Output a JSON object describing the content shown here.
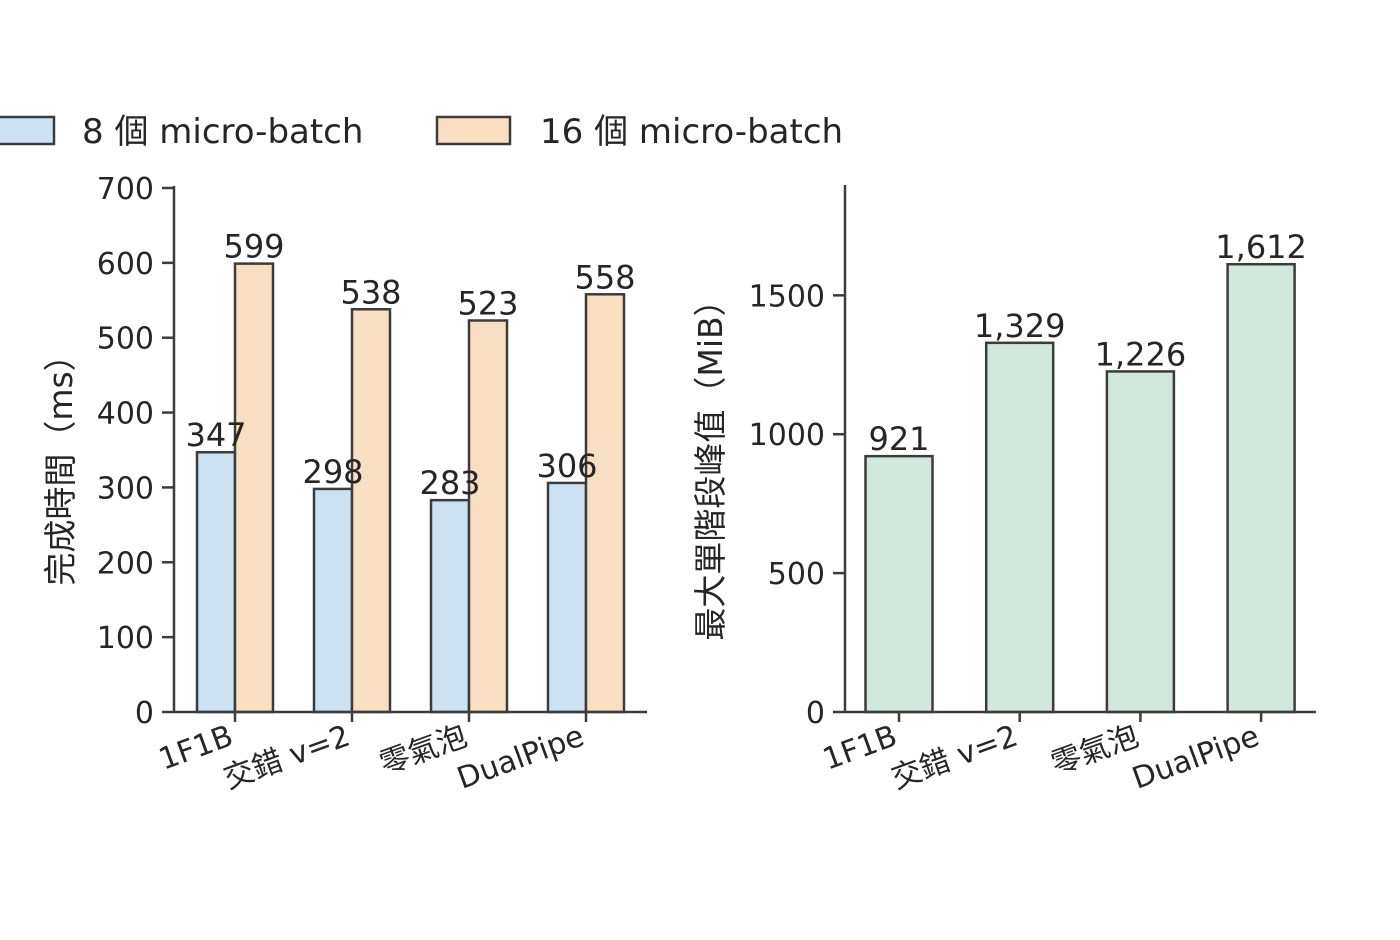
{
  "colors": {
    "series_8": "#cce2f3",
    "series_16": "#f9dfc1",
    "memory": "#d2e8dc",
    "edge": "#3c3c3c",
    "text": "#262626"
  },
  "chart_data": [
    {
      "type": "bar",
      "categories": [
        "1F1B",
        "交錯 v=2",
        "零氣泡",
        "DualPipe"
      ],
      "series": [
        {
          "name": "8 個 micro-batch",
          "values": [
            347,
            298,
            283,
            306
          ]
        },
        {
          "name": "16 個 micro-batch",
          "values": [
            599,
            538,
            523,
            558
          ]
        }
      ],
      "data_labels": [
        [
          "347",
          "298",
          "283",
          "306"
        ],
        [
          "599",
          "538",
          "523",
          "558"
        ]
      ],
      "title": "",
      "xlabel": "",
      "ylabel": "完成時間（ms）",
      "ylim": [
        0,
        700
      ],
      "yticks": [
        0,
        100,
        200,
        300,
        400,
        500,
        600,
        700
      ],
      "legend": "top",
      "grid": false
    },
    {
      "type": "bar",
      "categories": [
        "1F1B",
        "交錯 v=2",
        "零氣泡",
        "DualPipe"
      ],
      "values": [
        921,
        1329,
        1226,
        1612
      ],
      "data_labels": [
        "921",
        "1,329",
        "1,226",
        "1,612"
      ],
      "title": "",
      "xlabel": "",
      "ylabel": "最大單階段峰值（MiB）",
      "ylim": [
        0,
        1890
      ],
      "yticks": [
        0,
        500,
        1000,
        1500
      ],
      "grid": false
    }
  ]
}
